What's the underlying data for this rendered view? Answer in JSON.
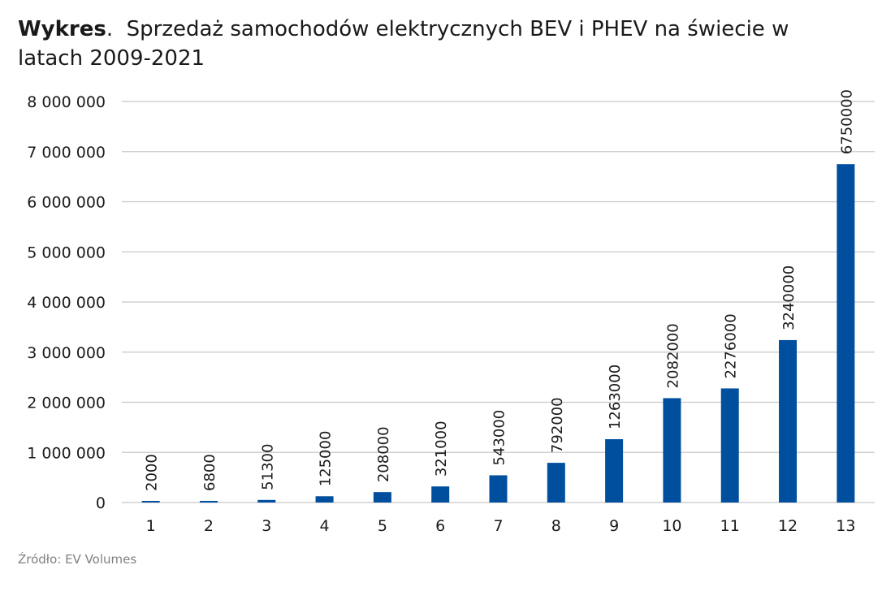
{
  "title": {
    "bold": "Wykres",
    "separator": ".",
    "rest": "Sprzedaż samochodów elektrycznych BEV i PHEV na świecie w latach 2009-2021"
  },
  "source": "Źródło: EV Volumes",
  "chart_data": {
    "type": "bar",
    "title": "Wykres. Sprzedaż samochodów elektrycznych BEV i PHEV na świecie w latach 2009-2021",
    "xlabel": "",
    "ylabel": "",
    "categories": [
      "1",
      "2",
      "3",
      "4",
      "5",
      "6",
      "7",
      "8",
      "9",
      "10",
      "11",
      "12",
      "13"
    ],
    "series": [
      {
        "values": [
          2000,
          6800,
          51300,
          125000,
          208000,
          321000,
          543000,
          792000,
          1263000,
          2082000,
          2276000,
          3240000,
          6750000
        ],
        "color": "#004f9f"
      }
    ],
    "data_labels": [
      "2000",
      "6800",
      "51300",
      "125000",
      "208000",
      "321000",
      "543000",
      "792000",
      "1263000",
      "2082000",
      "2276000",
      "3240000",
      "6750000"
    ],
    "y_ticks": [
      0,
      1000000,
      2000000,
      3000000,
      4000000,
      5000000,
      6000000,
      7000000,
      8000000
    ],
    "y_tick_labels": [
      "0",
      "1 000 000",
      "2 000 000",
      "3 000 000",
      "4 000 000",
      "5 000 000",
      "6 000 000",
      "7 000 000",
      "8 000 000"
    ],
    "ylim": [
      0,
      8000000
    ],
    "grid": true,
    "legend": "none"
  }
}
